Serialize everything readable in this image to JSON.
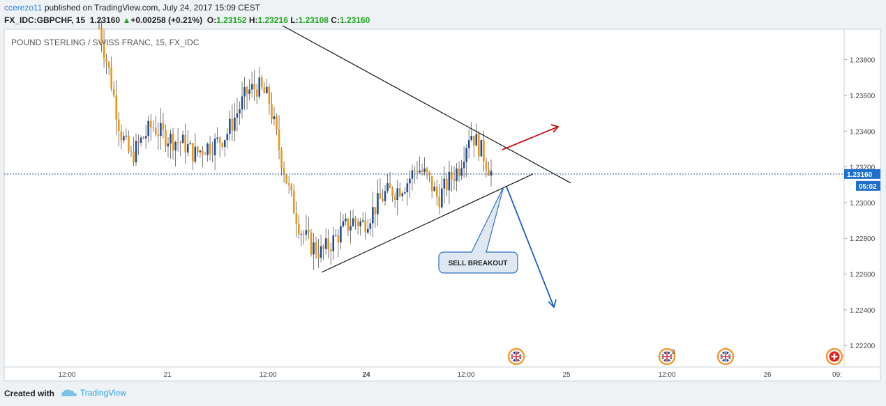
{
  "header": {
    "user": "ccerezo11",
    "published_text": "published on TradingView.com, July 24, 2017 15:09 CEST",
    "symbol": "FX_IDC:GBPCHF, 15",
    "last": "1.23160",
    "change": "+0.00258 (+0.21%)",
    "o_label": "O:",
    "o": "1.23152",
    "h_label": "H:",
    "h": "1.23216",
    "l_label": "L:",
    "l": "1.23108",
    "c_label": "C:",
    "c": "1.23160"
  },
  "chart_data": {
    "type": "candlestick",
    "title": "POUND STERLING / SWISS FRANC, 15, FX_IDC",
    "y_range": [
      1.2208,
      1.2397
    ],
    "y_ticks": [
      1.222,
      1.224,
      1.226,
      1.228,
      1.23,
      1.232,
      1.234,
      1.236,
      1.238
    ],
    "y_tick_labels": [
      "1.22200",
      "1.22400",
      "1.22600",
      "1.22800",
      "1.23000",
      "1.23200",
      "1.23400",
      "1.23600",
      "1.23800"
    ],
    "x_tick_labels": [
      "12:00",
      "21",
      "12:00",
      "24",
      "12:00",
      "25",
      "12:00",
      "26",
      "09:"
    ],
    "last_price": 1.2316,
    "last_price_label": "1.23160",
    "countdown_label": "05:02",
    "price_path": [
      1.2398,
      1.2372,
      1.234,
      1.2325,
      1.2335,
      1.2343,
      1.2338,
      1.2335,
      1.2333,
      1.2327,
      1.2331,
      1.2333,
      1.2338,
      1.235,
      1.2362,
      1.2365,
      1.2358,
      1.233,
      1.2305,
      1.2285,
      1.2276,
      1.2272,
      1.2278,
      1.2285,
      1.229,
      1.2288,
      1.2297,
      1.2305,
      1.2307,
      1.2311,
      1.232,
      1.2314,
      1.2302,
      1.2312,
      1.232,
      1.234,
      1.233,
      1.2317
    ],
    "annotations": {
      "callout_text": "SELL BREAKOUT",
      "upper_trendline": [
        1.2399,
        1.2311
      ],
      "lower_trendline": [
        1.2261,
        1.2316
      ],
      "arrow_up_color": "#cc1111",
      "arrow_down_color": "#1b5fc1"
    },
    "colors": {
      "up_candle": "#1f4e9c",
      "down_candle": "#f0960e",
      "price_line": "#1f4e9c",
      "label_bg": "#1f6fcf"
    },
    "event_flags": [
      {
        "type": "uk-flag",
        "badge": ""
      },
      {
        "type": "uk-flag",
        "badge": "3"
      },
      {
        "type": "uk-flag",
        "badge": ""
      },
      {
        "type": "swiss-flag",
        "badge": ""
      }
    ]
  },
  "footer": {
    "created_with": "Created with",
    "brand": "TradingView"
  }
}
